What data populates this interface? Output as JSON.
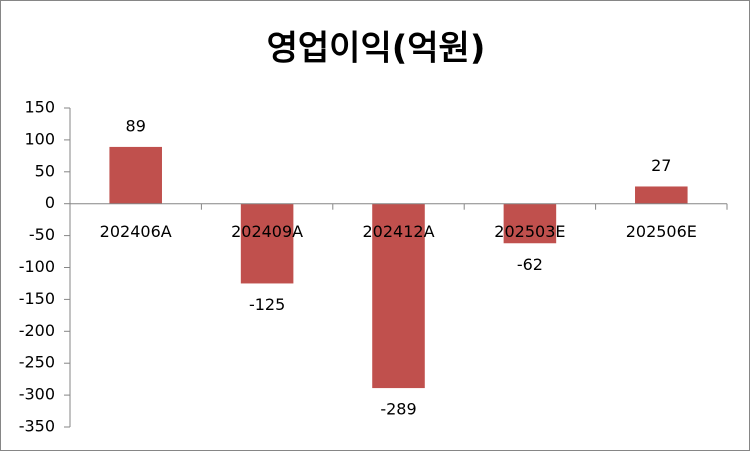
{
  "chart_data": {
    "type": "bar",
    "title": "영업이익(억원)",
    "categories": [
      "202406A",
      "202409A",
      "202412A",
      "202503E",
      "202506E"
    ],
    "values": [
      89,
      -125,
      -289,
      -62,
      27
    ],
    "color": "#c0504d",
    "ylim": [
      -350,
      150
    ],
    "yticks": [
      -350,
      -300,
      -250,
      -200,
      -150,
      -100,
      -50,
      0,
      50,
      100,
      150
    ],
    "data_labels": true
  }
}
